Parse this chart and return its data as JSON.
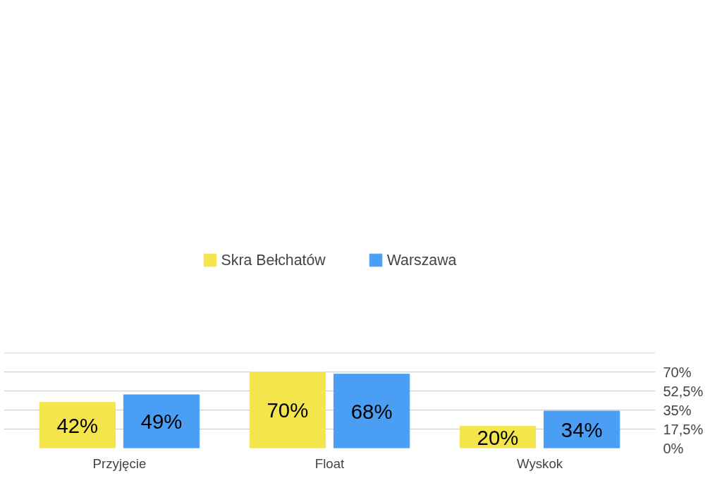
{
  "chart_data": {
    "type": "bar",
    "categories": [
      "Przyjęcie",
      "Float",
      "Wyskok"
    ],
    "series": [
      {
        "name": "Skra Bełchatów",
        "color": "#f5e54c",
        "values": [
          42,
          70,
          20
        ],
        "value_labels": [
          "42%",
          "70%",
          "20%"
        ]
      },
      {
        "name": "Warszawa",
        "color": "#4a9ff5",
        "values": [
          49,
          68,
          34
        ],
        "value_labels": [
          "49%",
          "68%",
          "34%"
        ]
      }
    ],
    "ylim": [
      0,
      87.5
    ],
    "yticks": [
      {
        "value": 0,
        "label": "0%"
      },
      {
        "value": 17.5,
        "label": "17,5%"
      },
      {
        "value": 35,
        "label": "35%"
      },
      {
        "value": 52.5,
        "label": "52,5%"
      },
      {
        "value": 70,
        "label": "70%"
      },
      {
        "value": 87.5,
        "label": null
      }
    ],
    "grid": "y",
    "legend": "top"
  }
}
